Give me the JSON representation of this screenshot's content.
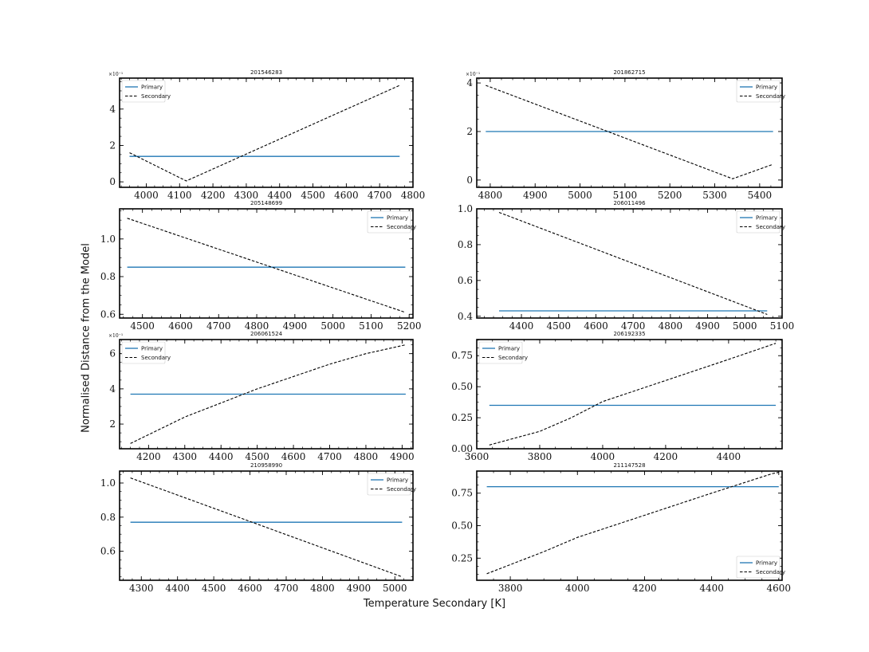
{
  "figure": {
    "xlabel": "Temperature Secondary [K]",
    "ylabel": "Normalised Distance from the Model"
  },
  "legend_labels": [
    "Primary",
    "Secondary"
  ],
  "colors": {
    "primary": "#1f77b4",
    "secondary": "#000000"
  },
  "chart_data": [
    {
      "type": "line",
      "title": "201546283",
      "xlim": [
        3920,
        4800
      ],
      "ylim": [
        -0.03,
        0.57
      ],
      "multiplier": "×10⁻¹",
      "yticks": [
        0,
        0.2,
        0.4
      ],
      "yticklabels": [
        "0",
        "2",
        "4"
      ],
      "xticks": [
        4000,
        4100,
        4200,
        4300,
        4400,
        4500,
        4600,
        4700,
        4800
      ],
      "legend": "upper left",
      "series": [
        {
          "name": "Primary",
          "style": "solid",
          "x": [
            3950,
            4760
          ],
          "y": [
            0.14,
            0.14
          ]
        },
        {
          "name": "Secondary",
          "style": "dashed",
          "x": [
            3950,
            4120,
            4760
          ],
          "y": [
            0.16,
            0.005,
            0.53
          ]
        }
      ]
    },
    {
      "type": "line",
      "title": "201862715",
      "xlim": [
        4770,
        5450
      ],
      "ylim": [
        -0.03,
        0.42
      ],
      "multiplier": "×10⁻¹",
      "yticks": [
        0,
        0.2,
        0.4
      ],
      "yticklabels": [
        "0",
        "2",
        "4"
      ],
      "xticks": [
        4800,
        4900,
        5000,
        5100,
        5200,
        5300,
        5400
      ],
      "legend": "upper right",
      "series": [
        {
          "name": "Primary",
          "style": "solid",
          "x": [
            4790,
            5430
          ],
          "y": [
            0.2,
            0.2
          ]
        },
        {
          "name": "Secondary",
          "style": "dashed",
          "x": [
            4790,
            5340,
            5430
          ],
          "y": [
            0.39,
            0.005,
            0.065
          ]
        }
      ]
    },
    {
      "type": "line",
      "title": "205148699",
      "xlim": [
        4440,
        5210
      ],
      "ylim": [
        0.58,
        1.16
      ],
      "yticks": [
        0.6,
        0.8,
        1.0
      ],
      "yticklabels": [
        "0.6",
        "0.8",
        "1.0"
      ],
      "xticks": [
        4500,
        4600,
        4700,
        4800,
        4900,
        5000,
        5100,
        5200
      ],
      "legend": "upper right",
      "series": [
        {
          "name": "Primary",
          "style": "solid",
          "x": [
            4460,
            5190
          ],
          "y": [
            0.85,
            0.85
          ]
        },
        {
          "name": "Secondary",
          "style": "dashed",
          "x": [
            4460,
            5190
          ],
          "y": [
            1.11,
            0.61
          ]
        }
      ]
    },
    {
      "type": "line",
      "title": "206011496",
      "xlim": [
        4280,
        5100
      ],
      "ylim": [
        0.39,
        1.0
      ],
      "yticks": [
        0.4,
        0.6,
        0.8,
        1.0
      ],
      "yticklabels": [
        "0.4",
        "0.6",
        "0.8",
        "1.0"
      ],
      "xticks": [
        4400,
        4500,
        4600,
        4700,
        4800,
        4900,
        5000,
        5100
      ],
      "legend": "upper right",
      "series": [
        {
          "name": "Primary",
          "style": "solid",
          "x": [
            4340,
            5060
          ],
          "y": [
            0.43,
            0.43
          ]
        },
        {
          "name": "Secondary",
          "style": "dashed",
          "x": [
            4340,
            5060
          ],
          "y": [
            0.98,
            0.41
          ]
        }
      ]
    },
    {
      "type": "line",
      "title": "206061524",
      "xlim": [
        4120,
        4930
      ],
      "ylim": [
        0.06,
        0.68
      ],
      "multiplier": "×10⁻¹",
      "yticks": [
        0.2,
        0.4,
        0.6
      ],
      "yticklabels": [
        "2",
        "4",
        "6"
      ],
      "xticks": [
        4200,
        4300,
        4400,
        4500,
        4600,
        4700,
        4800,
        4900
      ],
      "legend": "upper left",
      "series": [
        {
          "name": "Primary",
          "style": "solid",
          "x": [
            4150,
            4910
          ],
          "y": [
            0.37,
            0.37
          ]
        },
        {
          "name": "Secondary",
          "style": "dashed",
          "x": [
            4150,
            4300,
            4500,
            4700,
            4800,
            4910
          ],
          "y": [
            0.09,
            0.24,
            0.4,
            0.54,
            0.6,
            0.65
          ]
        }
      ]
    },
    {
      "type": "line",
      "title": "206192335",
      "xlim": [
        3600,
        4570
      ],
      "ylim": [
        0.0,
        0.88
      ],
      "yticks": [
        0,
        0.25,
        0.5,
        0.75
      ],
      "yticklabels": [
        "0.00",
        "0.25",
        "0.50",
        "0.75"
      ],
      "xticks": [
        3600,
        3800,
        4000,
        4200,
        4400
      ],
      "legend": "upper left",
      "series": [
        {
          "name": "Primary",
          "style": "solid",
          "x": [
            3640,
            4550
          ],
          "y": [
            0.35,
            0.35
          ]
        },
        {
          "name": "Secondary",
          "style": "dashed",
          "x": [
            3640,
            3800,
            3900,
            4000,
            4200,
            4400,
            4550
          ],
          "y": [
            0.03,
            0.14,
            0.25,
            0.38,
            0.55,
            0.72,
            0.85
          ]
        }
      ]
    },
    {
      "type": "line",
      "title": "210958990",
      "xlim": [
        4240,
        5050
      ],
      "ylim": [
        0.43,
        1.07
      ],
      "yticks": [
        0.6,
        0.8,
        1.0
      ],
      "yticklabels": [
        "0.6",
        "0.8",
        "1.0"
      ],
      "xticks": [
        4300,
        4400,
        4500,
        4600,
        4700,
        4800,
        4900,
        5000
      ],
      "legend": "upper right",
      "series": [
        {
          "name": "Primary",
          "style": "solid",
          "x": [
            4270,
            5020
          ],
          "y": [
            0.77,
            0.77
          ]
        },
        {
          "name": "Secondary",
          "style": "dashed",
          "x": [
            4270,
            5020
          ],
          "y": [
            1.03,
            0.45
          ]
        }
      ]
    },
    {
      "type": "line",
      "title": "211147528",
      "xlim": [
        3700,
        4610
      ],
      "ylim": [
        0.08,
        0.92
      ],
      "yticks": [
        0.25,
        0.5,
        0.75
      ],
      "yticklabels": [
        "0.25",
        "0.50",
        "0.75"
      ],
      "xticks": [
        3800,
        4000,
        4200,
        4400,
        4600
      ],
      "legend": "lower right",
      "series": [
        {
          "name": "Primary",
          "style": "solid",
          "x": [
            3730,
            4600
          ],
          "y": [
            0.8,
            0.8
          ]
        },
        {
          "name": "Secondary",
          "style": "dashed",
          "x": [
            3730,
            3900,
            4000,
            4200,
            4400,
            4580,
            4600
          ],
          "y": [
            0.13,
            0.3,
            0.41,
            0.58,
            0.75,
            0.9,
            0.91
          ]
        }
      ]
    }
  ]
}
